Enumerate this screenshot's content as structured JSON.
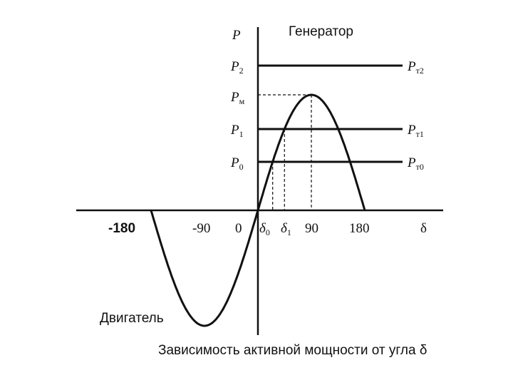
{
  "header": {
    "axis_y": "P",
    "region_top": "Генератор",
    "region_bottom": "Двигатель"
  },
  "y_labels": [
    {
      "symbol": "P",
      "sub": "2"
    },
    {
      "symbol": "P",
      "sub": "м"
    },
    {
      "symbol": "P",
      "sub": "1"
    },
    {
      "symbol": "P",
      "sub": "0"
    }
  ],
  "line_labels": [
    {
      "symbol": "P",
      "sub": "т2"
    },
    {
      "symbol": "P",
      "sub": "т1"
    },
    {
      "symbol": "P",
      "sub": "т0"
    }
  ],
  "x_labels": [
    "-180",
    "-90",
    "0",
    {
      "symbol": "δ",
      "sub": "0"
    },
    {
      "symbol": "δ",
      "sub": "1"
    },
    "90",
    "180",
    "δ"
  ],
  "caption": "Зависимость активной мощности от угла δ"
}
